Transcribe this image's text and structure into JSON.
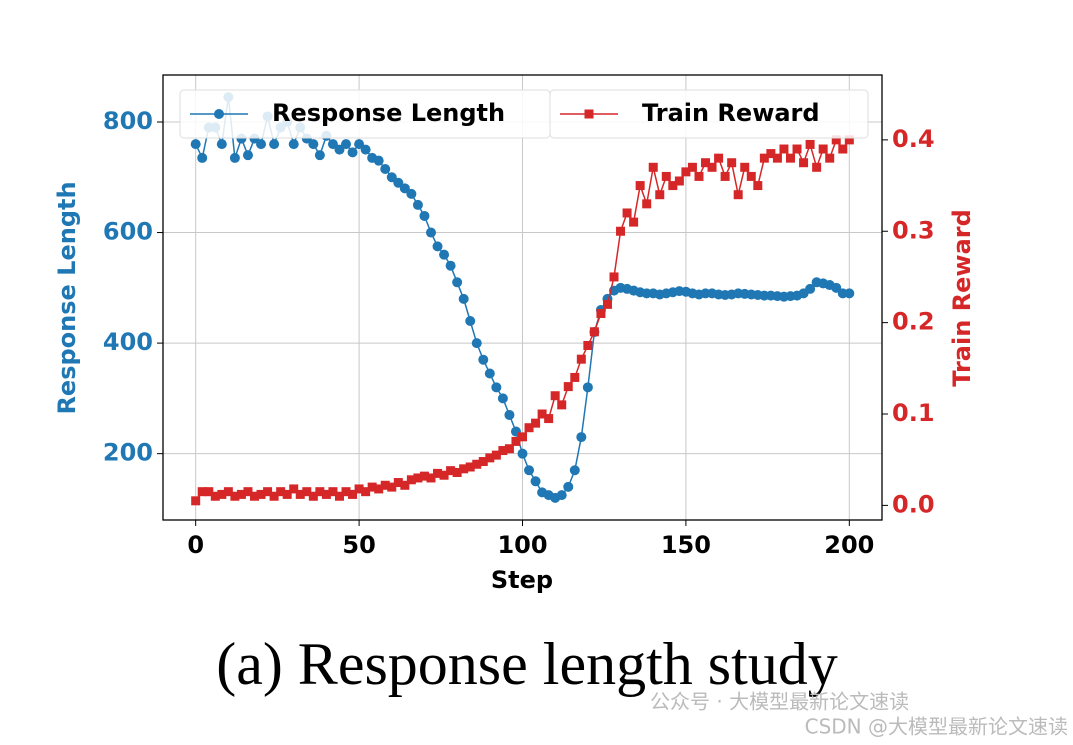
{
  "chart_data": {
    "type": "line",
    "xlabel": "Step",
    "ylabel": "Response Length",
    "y2label": "Train Reward",
    "caption": "(a) Response length study",
    "watermark": [
      "公众号 · 大模型最新论文速读",
      "CSDN @大模型最新论文速读"
    ],
    "xlim": [
      -10,
      210
    ],
    "xticks": [
      0,
      50,
      100,
      150,
      200
    ],
    "ylim": [
      80,
      885
    ],
    "yticks": [
      200,
      400,
      600,
      800
    ],
    "y2lim": [
      -0.016,
      0.471
    ],
    "y2ticks": [
      {
        "value": 0,
        "label": "0.0"
      },
      0.1,
      0.2,
      0.3,
      0.4
    ],
    "grid": true,
    "legend": "upper center",
    "x": [
      0,
      2,
      4,
      6,
      8,
      10,
      12,
      14,
      16,
      18,
      20,
      22,
      24,
      26,
      28,
      30,
      32,
      34,
      36,
      38,
      40,
      42,
      44,
      46,
      48,
      50,
      52,
      54,
      56,
      58,
      60,
      62,
      64,
      66,
      68,
      70,
      72,
      74,
      76,
      78,
      80,
      82,
      84,
      86,
      88,
      90,
      92,
      94,
      96,
      98,
      100,
      102,
      104,
      106,
      108,
      110,
      112,
      114,
      116,
      118,
      120,
      122,
      124,
      126,
      128,
      130,
      132,
      134,
      136,
      138,
      140,
      142,
      144,
      146,
      148,
      150,
      152,
      154,
      156,
      158,
      160,
      162,
      164,
      166,
      168,
      170,
      172,
      174,
      176,
      178,
      180,
      182,
      184,
      186,
      188,
      190,
      192,
      194,
      196,
      198,
      200
    ],
    "series": [
      {
        "name": "Response Length",
        "color": "#1f77b4",
        "marker": "circle",
        "axis": "y",
        "values": [
          760,
          735,
          790,
          790,
          760,
          845,
          735,
          770,
          740,
          770,
          760,
          810,
          760,
          790,
          800,
          760,
          790,
          770,
          760,
          740,
          775,
          760,
          750,
          760,
          745,
          760,
          750,
          735,
          730,
          715,
          700,
          690,
          680,
          670,
          650,
          630,
          600,
          575,
          560,
          540,
          510,
          480,
          440,
          400,
          370,
          345,
          320,
          300,
          270,
          240,
          200,
          170,
          150,
          130,
          125,
          120,
          125,
          140,
          170,
          230,
          320,
          420,
          460,
          480,
          495,
          500,
          498,
          495,
          492,
          490,
          490,
          488,
          490,
          492,
          494,
          493,
          490,
          488,
          490,
          490,
          488,
          487,
          488,
          490,
          489,
          488,
          487,
          486,
          486,
          485,
          484,
          485,
          486,
          490,
          498,
          510,
          508,
          505,
          500,
          490,
          490
        ]
      },
      {
        "name": "Train Reward",
        "color": "#d62728",
        "marker": "square",
        "axis": "y2",
        "values": [
          0.005,
          0.015,
          0.015,
          0.01,
          0.012,
          0.015,
          0.01,
          0.012,
          0.015,
          0.01,
          0.012,
          0.015,
          0.01,
          0.015,
          0.012,
          0.018,
          0.012,
          0.015,
          0.01,
          0.015,
          0.012,
          0.015,
          0.01,
          0.015,
          0.012,
          0.018,
          0.015,
          0.02,
          0.018,
          0.022,
          0.02,
          0.025,
          0.022,
          0.028,
          0.03,
          0.032,
          0.03,
          0.035,
          0.033,
          0.038,
          0.036,
          0.04,
          0.042,
          0.045,
          0.048,
          0.052,
          0.055,
          0.06,
          0.062,
          0.07,
          0.075,
          0.085,
          0.09,
          0.1,
          0.095,
          0.12,
          0.11,
          0.13,
          0.14,
          0.16,
          0.175,
          0.19,
          0.21,
          0.22,
          0.25,
          0.3,
          0.32,
          0.31,
          0.35,
          0.33,
          0.37,
          0.34,
          0.36,
          0.35,
          0.355,
          0.365,
          0.37,
          0.36,
          0.375,
          0.37,
          0.38,
          0.36,
          0.375,
          0.34,
          0.37,
          0.36,
          0.35,
          0.38,
          0.385,
          0.38,
          0.39,
          0.38,
          0.39,
          0.375,
          0.395,
          0.37,
          0.39,
          0.38,
          0.4,
          0.39,
          0.4
        ]
      }
    ]
  }
}
